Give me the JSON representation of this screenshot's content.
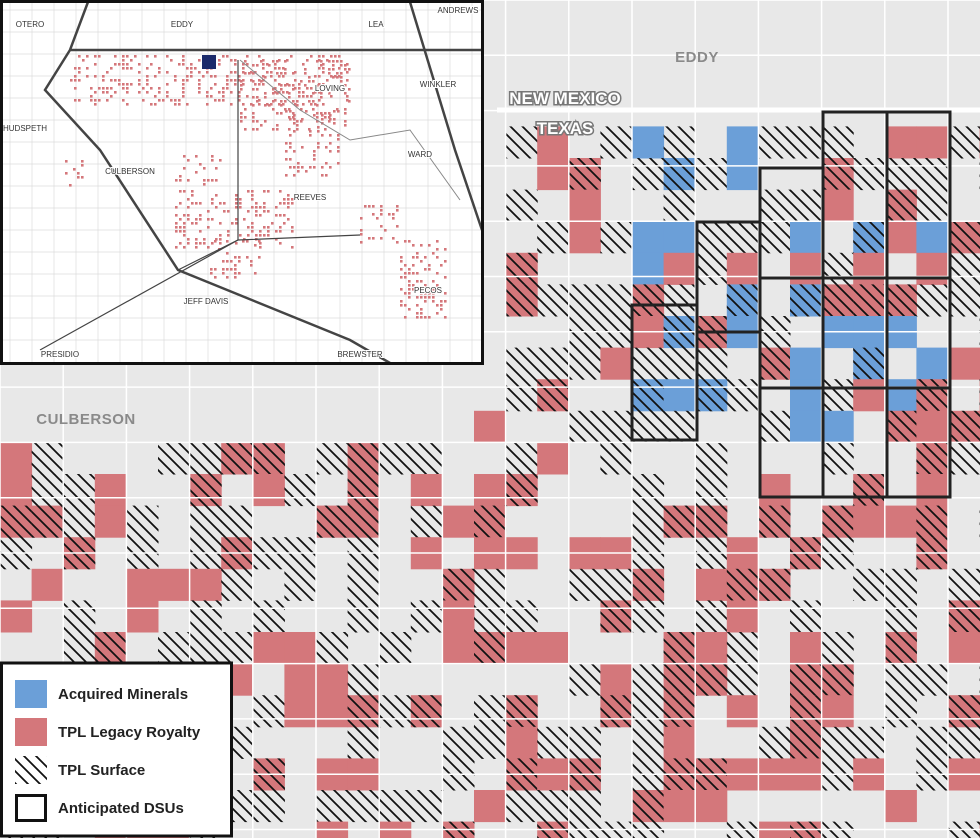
{
  "map": {
    "labels": {
      "eddy": "EDDY",
      "new_mexico": "NEW MEXICO",
      "texas": "TEXAS",
      "culberson": "CULBERSON"
    },
    "inset": {
      "labels": [
        "OTERO",
        "EDDY",
        "LEA",
        "ANDREWS",
        "WINKLER",
        "LOVING",
        "HUDSPETH",
        "CULBERSON",
        "WARD",
        "REEVES",
        "JEFF DAVIS",
        "PECOS",
        "PRESIDIO",
        "BREWSTER"
      ]
    },
    "legend": [
      "Acquired Minerals",
      "TPL Legacy Royalty",
      "TPL Surface",
      "Anticipated DSUs"
    ]
  }
}
